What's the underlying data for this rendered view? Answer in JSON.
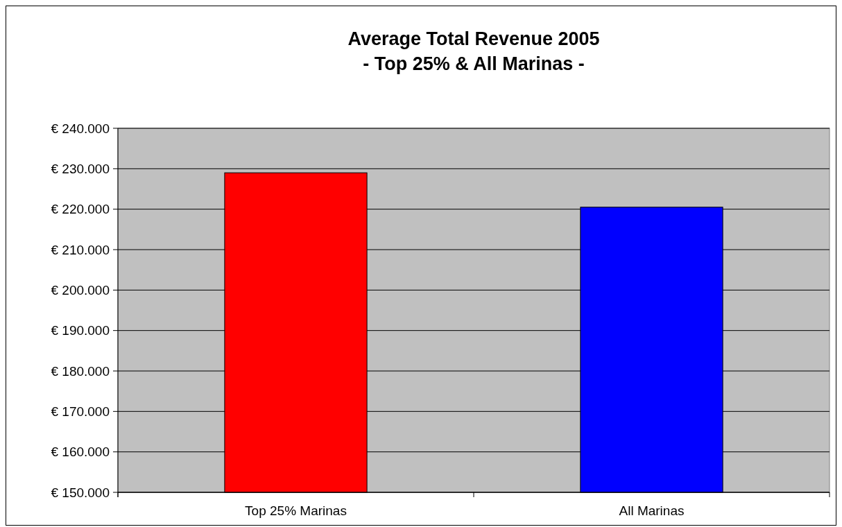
{
  "chart_data": {
    "type": "bar",
    "title": "Average Total Revenue 2005\n- Top 25% & All Marinas -",
    "categories": [
      "Top 25% Marinas",
      "All Marinas"
    ],
    "values": [
      229000,
      220500
    ],
    "colors": [
      "#ff0000",
      "#0000ff"
    ],
    "ylim": [
      150000,
      240000
    ],
    "yticks": [
      {
        "value": 150000,
        "label": "€ 150.000"
      },
      {
        "value": 160000,
        "label": "€ 160.000"
      },
      {
        "value": 170000,
        "label": "€ 170.000"
      },
      {
        "value": 180000,
        "label": "€ 180.000"
      },
      {
        "value": 190000,
        "label": "€ 190.000"
      },
      {
        "value": 200000,
        "label": "€ 200.000"
      },
      {
        "value": 210000,
        "label": "€ 210.000"
      },
      {
        "value": 220000,
        "label": "€ 220.000"
      },
      {
        "value": 230000,
        "label": "€ 230.000"
      },
      {
        "value": 240000,
        "label": "€ 240.000"
      }
    ],
    "grid": "y"
  }
}
